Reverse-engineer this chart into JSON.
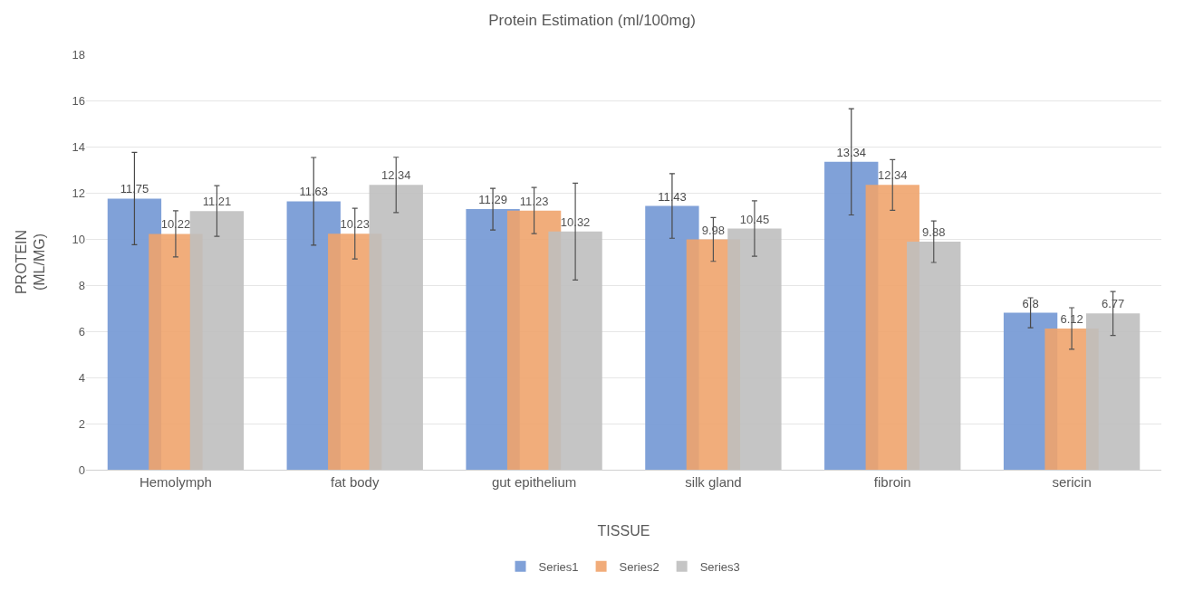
{
  "chart_data": {
    "type": "bar",
    "title": "Protein Estimation (ml/100mg)",
    "xlabel": "TISSUE",
    "ylabel": "PROTEIN\n(ML/MG)",
    "categories": [
      "Hemolymph",
      "fat body",
      "gut epithelium",
      "silk gland",
      "fibroin",
      "sericin"
    ],
    "series": [
      {
        "name": "Series1",
        "color": "#7a9cd6",
        "values": [
          11.75,
          11.63,
          11.29,
          11.43,
          13.34,
          6.8
        ],
        "errors": [
          2.0,
          1.9,
          0.9,
          1.4,
          2.3,
          0.65
        ]
      },
      {
        "name": "Series2",
        "color": "#f0a46c",
        "values": [
          10.22,
          10.23,
          11.23,
          9.98,
          12.34,
          6.12
        ],
        "errors": [
          1.0,
          1.1,
          1.0,
          0.95,
          1.1,
          0.9
        ]
      },
      {
        "name": "Series3",
        "color": "#bfbfbf",
        "values": [
          11.21,
          12.34,
          10.32,
          10.45,
          9.88,
          6.77
        ],
        "errors": [
          1.1,
          1.2,
          2.1,
          1.2,
          0.9,
          0.95
        ]
      }
    ],
    "ylim": [
      0,
      18
    ],
    "yticks": [
      0,
      2,
      4,
      6,
      8,
      10,
      12,
      14,
      16,
      18
    ],
    "grid": "y",
    "legend": "bottom",
    "data_labels": true
  }
}
